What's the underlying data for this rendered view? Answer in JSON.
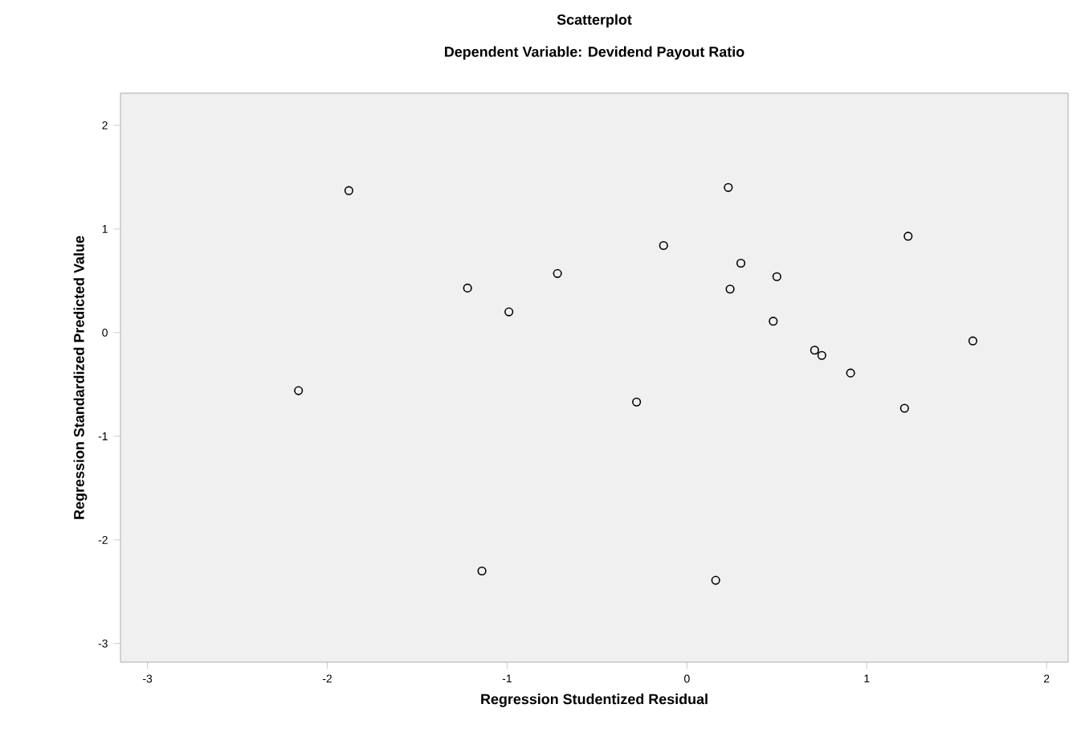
{
  "chart_data": {
    "type": "scatter",
    "title": "Scatterplot",
    "subtitle": "Dependent Variable: Devidend Payout Ratio",
    "xlabel": "Regression Studentized Residual",
    "ylabel": "Regression Standardized Predicted Value",
    "xlim": [
      -3.15,
      2.12
    ],
    "ylim": [
      -3.18,
      2.31
    ],
    "xticks": [
      -3,
      -2,
      -1,
      0,
      1,
      2
    ],
    "yticks": [
      -3,
      -2,
      -1,
      0,
      1,
      2
    ],
    "marker": "circle",
    "series": [
      {
        "color": "#000000",
        "x": [
          -2.16,
          -1.88,
          -1.22,
          -0.99,
          -0.72,
          -1.14,
          -0.28,
          -0.13,
          0.23,
          0.3,
          0.24,
          0.5,
          0.48,
          0.71,
          0.75,
          0.91,
          1.21,
          1.23,
          1.59,
          0.16
        ],
        "values": [
          -0.56,
          1.37,
          0.43,
          0.2,
          0.57,
          -2.3,
          -0.67,
          0.84,
          1.4,
          0.67,
          0.42,
          0.54,
          0.11,
          -0.17,
          -0.22,
          -0.39,
          -0.73,
          0.93,
          -0.08,
          -2.39
        ]
      }
    ]
  }
}
